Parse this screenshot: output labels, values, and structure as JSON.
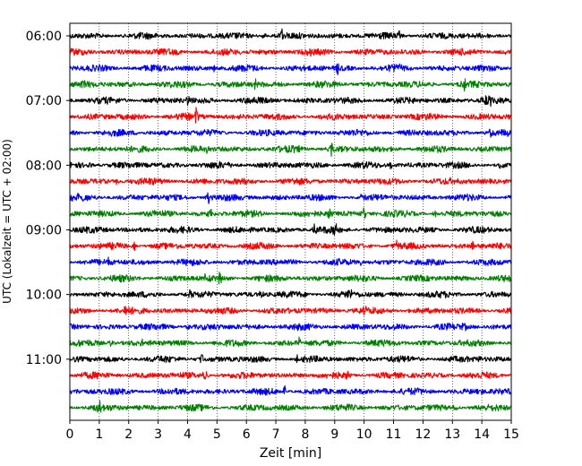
{
  "chart_data": {
    "type": "line",
    "title": "",
    "xlabel": "Zeit  [min]",
    "ylabel": "UTC (Lokalzeit = UTC + 02:00)",
    "xlim": [
      0,
      15
    ],
    "x_ticks": [
      0,
      1,
      2,
      3,
      4,
      5,
      6,
      7,
      8,
      9,
      10,
      11,
      12,
      13,
      14,
      15
    ],
    "y_tick_labels": [
      "06:00",
      "07:00",
      "08:00",
      "09:00",
      "10:00",
      "11:00"
    ],
    "y_tick_rows": [
      0,
      4,
      8,
      12,
      16,
      20
    ],
    "grid": "vertical dotted",
    "row_interval_minutes": 15,
    "rows": [
      {
        "label": "06:00",
        "color": "#000000",
        "spikes": [
          [
            7.2,
            1.0
          ],
          [
            6.6,
            0.5
          ],
          [
            11.2,
            0.5
          ]
        ]
      },
      {
        "label": "06:15",
        "color": "#ff0000",
        "spikes": [
          [
            3.4,
            1.0
          ],
          [
            8.2,
            0.3
          ]
        ]
      },
      {
        "label": "06:30",
        "color": "#0000ff",
        "spikes": [
          [
            4.9,
            0.6
          ],
          [
            9.1,
            0.7
          ],
          [
            11.2,
            0.8
          ],
          [
            13.6,
            0.3
          ]
        ]
      },
      {
        "label": "06:45",
        "color": "#008000",
        "spikes": [
          [
            0.4,
            1.0
          ],
          [
            6.3,
            0.8
          ],
          [
            13.4,
            1.0
          ]
        ]
      },
      {
        "label": "07:00",
        "color": "#000000",
        "spikes": [
          [
            4.0,
            0.8
          ],
          [
            14.1,
            1.1
          ],
          [
            14.3,
            0.9
          ]
        ]
      },
      {
        "label": "07:15",
        "color": "#ff0000",
        "spikes": [
          [
            4.3,
            1.3
          ]
        ]
      },
      {
        "label": "07:30",
        "color": "#0000ff",
        "spikes": [
          [
            14.3,
            0.5
          ],
          [
            5.1,
            0.3
          ]
        ]
      },
      {
        "label": "07:45",
        "color": "#008000",
        "spikes": [
          [
            4.7,
            1.0
          ],
          [
            7.7,
            0.9
          ],
          [
            8.9,
            1.0
          ],
          [
            1.6,
            0.4
          ]
        ]
      },
      {
        "label": "08:00",
        "color": "#000000",
        "spikes": [
          [
            0.7,
            0.6
          ],
          [
            10.9,
            0.8
          ],
          [
            14.6,
            0.8
          ]
        ]
      },
      {
        "label": "08:15",
        "color": "#ff0000",
        "spikes": [
          [
            1.6,
            0.5
          ],
          [
            6.0,
            0.3
          ],
          [
            14.8,
            0.4
          ]
        ]
      },
      {
        "label": "08:30",
        "color": "#0000ff",
        "spikes": [
          [
            0.3,
            0.8
          ],
          [
            4.7,
            1.0
          ],
          [
            9.9,
            0.4
          ]
        ]
      },
      {
        "label": "08:45",
        "color": "#008000",
        "spikes": [
          [
            4.8,
            0.7
          ],
          [
            8.8,
            1.1
          ],
          [
            10.0,
            0.9
          ],
          [
            12.4,
            0.8
          ]
        ]
      },
      {
        "label": "09:00",
        "color": "#000000",
        "spikes": [
          [
            8.3,
            0.8
          ],
          [
            9.0,
            1.1
          ]
        ]
      },
      {
        "label": "09:15",
        "color": "#ff0000",
        "spikes": [
          [
            2.2,
            0.5
          ],
          [
            11.1,
            0.6
          ],
          [
            13.7,
            0.8
          ]
        ]
      },
      {
        "label": "09:30",
        "color": "#0000ff",
        "spikes": [
          [
            1.3,
            0.5
          ],
          [
            9.9,
            0.4
          ],
          [
            14.8,
            0.8
          ]
        ]
      },
      {
        "label": "09:45",
        "color": "#008000",
        "spikes": [
          [
            4.6,
            0.7
          ],
          [
            5.1,
            0.9
          ]
        ]
      },
      {
        "label": "10:00",
        "color": "#000000",
        "spikes": [
          [
            4.1,
            0.6
          ],
          [
            6.5,
            0.7
          ],
          [
            9.5,
            1.1
          ]
        ]
      },
      {
        "label": "10:15",
        "color": "#ff0000",
        "spikes": [
          [
            1.9,
            0.8
          ],
          [
            10.0,
            0.9
          ]
        ]
      },
      {
        "label": "10:30",
        "color": "#0000ff",
        "spikes": [
          [
            4.0,
            0.4
          ],
          [
            13.4,
            0.8
          ],
          [
            7.1,
            0.3
          ]
        ]
      },
      {
        "label": "10:45",
        "color": "#008000",
        "spikes": [
          [
            1.4,
            0.9
          ],
          [
            2.5,
            0.5
          ],
          [
            7.8,
            0.8
          ]
        ]
      },
      {
        "label": "11:00",
        "color": "#000000",
        "spikes": [
          [
            4.5,
            0.9
          ],
          [
            7.7,
            1.1
          ],
          [
            13.9,
            0.5
          ]
        ]
      },
      {
        "label": "11:15",
        "color": "#ff0000",
        "spikes": [
          [
            4.6,
            1.5
          ],
          [
            9.4,
            0.9
          ]
        ]
      },
      {
        "label": "11:30",
        "color": "#0000ff",
        "spikes": [
          [
            7.3,
            1.0
          ],
          [
            14.0,
            0.3
          ]
        ]
      },
      {
        "label": "11:45",
        "color": "#008000",
        "spikes": [
          [
            1.0,
            0.8
          ],
          [
            13.1,
            0.5
          ]
        ]
      }
    ]
  }
}
